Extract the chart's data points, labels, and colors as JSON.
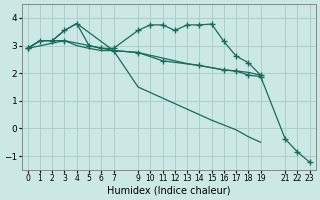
{
  "xlabel": "Humidex (Indice chaleur)",
  "background_color": "#cce8e4",
  "grid_color": "#aacfcb",
  "line_color": "#1a6b5a",
  "ylim": [
    -1.5,
    4.5
  ],
  "xlim": [
    -0.5,
    23.5
  ],
  "yticks": [
    -1,
    0,
    1,
    2,
    3,
    4
  ],
  "xtick_labels": [
    "0",
    "1",
    "2",
    "3",
    "4",
    "5",
    "6",
    "7",
    "",
    "9",
    "10",
    "11",
    "12",
    "13",
    "14",
    "15",
    "16",
    "17",
    "18",
    "19",
    "",
    "21",
    "22",
    "23"
  ],
  "series": [
    {
      "x": [
        0,
        1,
        2,
        3,
        4,
        5,
        6,
        7,
        9,
        10,
        11,
        12,
        13,
        14,
        15,
        16,
        17,
        18,
        19
      ],
      "y": [
        2.9,
        3.18,
        3.18,
        3.55,
        3.8,
        3.0,
        2.9,
        2.9,
        3.55,
        3.75,
        3.75,
        3.55,
        3.75,
        3.75,
        3.78,
        3.15,
        2.62,
        2.38,
        1.93
      ],
      "has_markers": true
    },
    {
      "x": [
        0,
        1,
        2,
        3,
        4,
        5,
        6,
        7,
        9,
        10,
        11,
        12,
        13,
        14,
        15,
        16,
        17,
        18,
        19
      ],
      "y": [
        2.9,
        3.18,
        3.18,
        3.18,
        3.0,
        2.9,
        2.82,
        2.82,
        2.75,
        2.65,
        2.55,
        2.45,
        2.35,
        2.28,
        2.2,
        2.12,
        2.08,
        2.03,
        1.93
      ],
      "has_markers": false
    },
    {
      "x": [
        0,
        1,
        2,
        3,
        4,
        7,
        9,
        11,
        13,
        15,
        17,
        18,
        19
      ],
      "y": [
        2.9,
        3.18,
        3.18,
        3.55,
        3.8,
        2.82,
        1.5,
        1.1,
        0.7,
        0.3,
        -0.05,
        -0.3,
        -0.5
      ],
      "has_markers": false
    },
    {
      "x": [
        0,
        3,
        7,
        9,
        11,
        14,
        16,
        17,
        18,
        19,
        21,
        22,
        23
      ],
      "y": [
        2.9,
        3.18,
        2.82,
        2.75,
        2.45,
        2.28,
        2.12,
        2.08,
        1.93,
        1.88,
        -0.38,
        -0.85,
        -1.22
      ],
      "has_markers": true
    }
  ]
}
